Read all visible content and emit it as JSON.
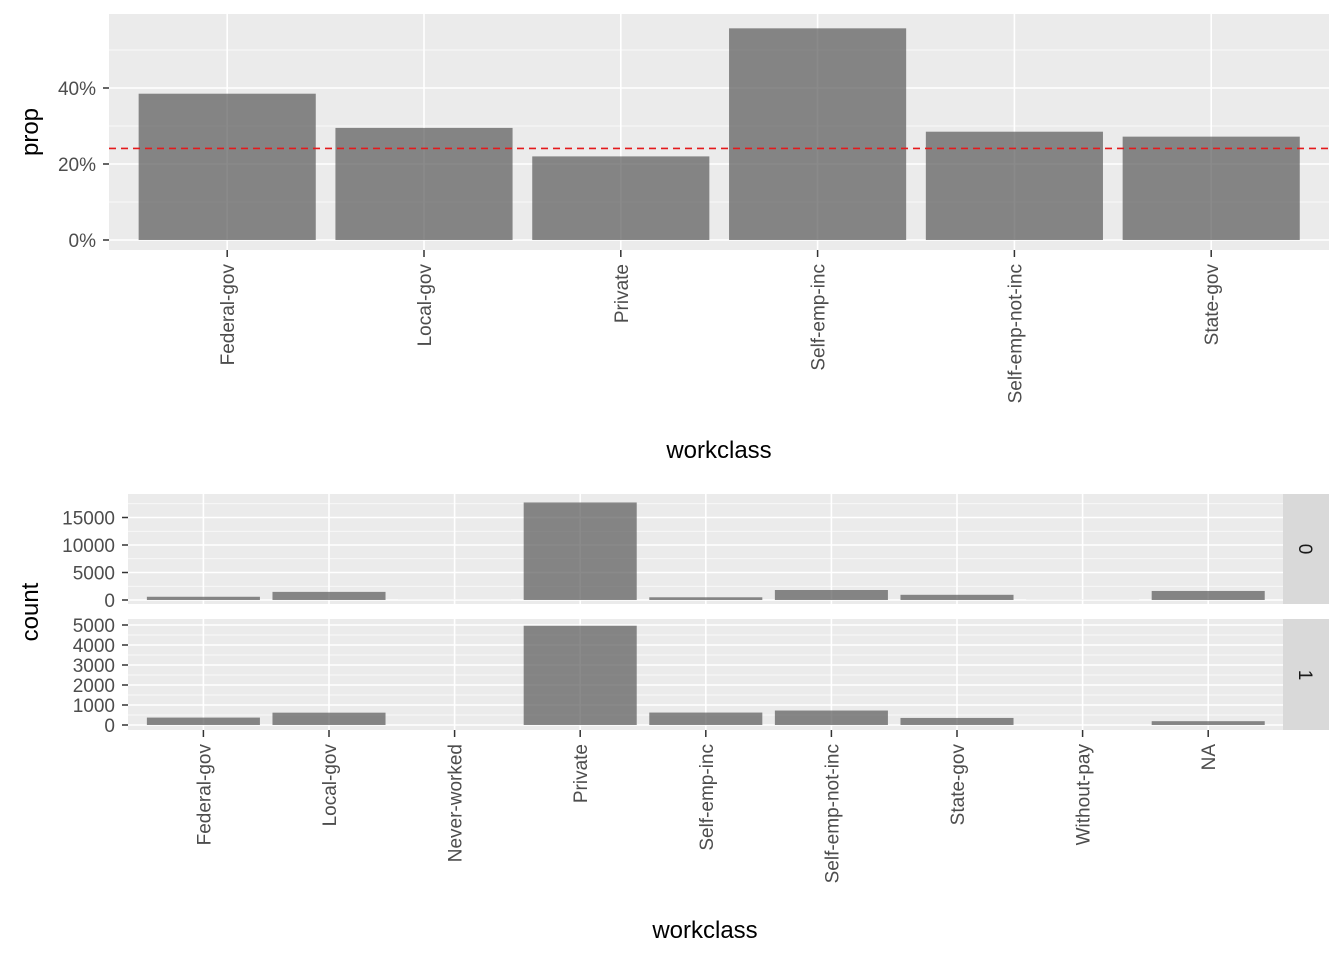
{
  "chart_data": [
    {
      "type": "bar",
      "categories": [
        "Federal-gov",
        "Local-gov",
        "Private",
        "Self-emp-inc",
        "Self-emp-not-inc",
        "State-gov"
      ],
      "values": [
        0.385,
        0.295,
        0.22,
        0.557,
        0.285,
        0.272
      ],
      "xlabel": "workclass",
      "ylabel": "prop",
      "ylim": [
        0,
        0.58
      ],
      "yticks": [
        0,
        0.2,
        0.4
      ],
      "ytick_labels": [
        "0%",
        "20%",
        "40%"
      ],
      "reference_line": {
        "value": 0.241,
        "style": "dashed",
        "color": "#e41a1c"
      },
      "bar_color": "#595959",
      "panel_color": "#ebebeb",
      "grid": true
    },
    {
      "type": "bar",
      "facet": "rows",
      "categories": [
        "Federal-gov",
        "Local-gov",
        "Never-worked",
        "Private",
        "Self-emp-inc",
        "Self-emp-not-inc",
        "State-gov",
        "Without-pay",
        "NA"
      ],
      "xlabel": "workclass",
      "ylabel": "count",
      "panels": [
        {
          "strip": "0",
          "values": [
            589,
            1476,
            7,
            17733,
            494,
            1817,
            945,
            14,
            1645
          ],
          "ylim": [
            0,
            17733
          ],
          "yticks": [
            0,
            5000,
            10000,
            15000
          ],
          "ytick_labels": [
            "0",
            "5000",
            "10000",
            "15000"
          ]
        },
        {
          "strip": "1",
          "values": [
            371,
            617,
            0,
            4963,
            622,
            724,
            353,
            0,
            191
          ],
          "ylim": [
            0,
            4963
          ],
          "yticks": [
            0,
            1000,
            2000,
            3000,
            4000,
            5000
          ],
          "ytick_labels": [
            "0",
            "1000",
            "2000",
            "3000",
            "4000",
            "5000"
          ]
        }
      ],
      "bar_color": "#595959",
      "strip_color": "#d9d9d9",
      "grid": true
    }
  ]
}
